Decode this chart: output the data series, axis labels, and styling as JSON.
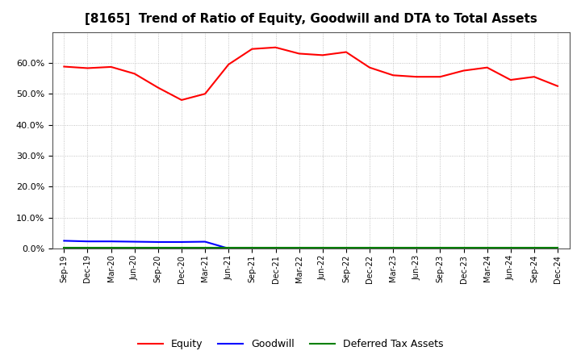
{
  "title": "[8165]  Trend of Ratio of Equity, Goodwill and DTA to Total Assets",
  "x_labels": [
    "Sep-19",
    "Dec-19",
    "Mar-20",
    "Jun-20",
    "Sep-20",
    "Dec-20",
    "Mar-21",
    "Jun-21",
    "Sep-21",
    "Dec-21",
    "Mar-22",
    "Jun-22",
    "Sep-22",
    "Dec-22",
    "Mar-23",
    "Jun-23",
    "Sep-23",
    "Dec-23",
    "Mar-24",
    "Jun-24",
    "Sep-24",
    "Dec-24"
  ],
  "equity": [
    58.8,
    58.3,
    58.7,
    56.5,
    52.0,
    48.0,
    50.0,
    59.5,
    64.5,
    65.0,
    63.0,
    62.5,
    63.5,
    58.5,
    56.0,
    55.5,
    55.5,
    57.5,
    58.5,
    54.5,
    55.5,
    52.5
  ],
  "goodwill": [
    2.5,
    2.3,
    2.3,
    2.2,
    2.1,
    2.1,
    2.2,
    0.0,
    0.0,
    0.0,
    0.0,
    0.0,
    0.0,
    0.0,
    0.0,
    0.0,
    0.0,
    0.0,
    0.0,
    0.0,
    0.0,
    0.0
  ],
  "dta": [
    0.3,
    0.3,
    0.3,
    0.3,
    0.3,
    0.3,
    0.3,
    0.3,
    0.3,
    0.3,
    0.3,
    0.3,
    0.3,
    0.3,
    0.3,
    0.3,
    0.3,
    0.3,
    0.3,
    0.3,
    0.3,
    0.3
  ],
  "equity_color": "#ff0000",
  "goodwill_color": "#0000ff",
  "dta_color": "#008000",
  "ylim": [
    0,
    70
  ],
  "yticks": [
    0.0,
    10.0,
    20.0,
    30.0,
    40.0,
    50.0,
    60.0
  ],
  "background_color": "#ffffff",
  "grid_color": "#aaaaaa",
  "title_fontsize": 11,
  "legend_labels": [
    "Equity",
    "Goodwill",
    "Deferred Tax Assets"
  ]
}
